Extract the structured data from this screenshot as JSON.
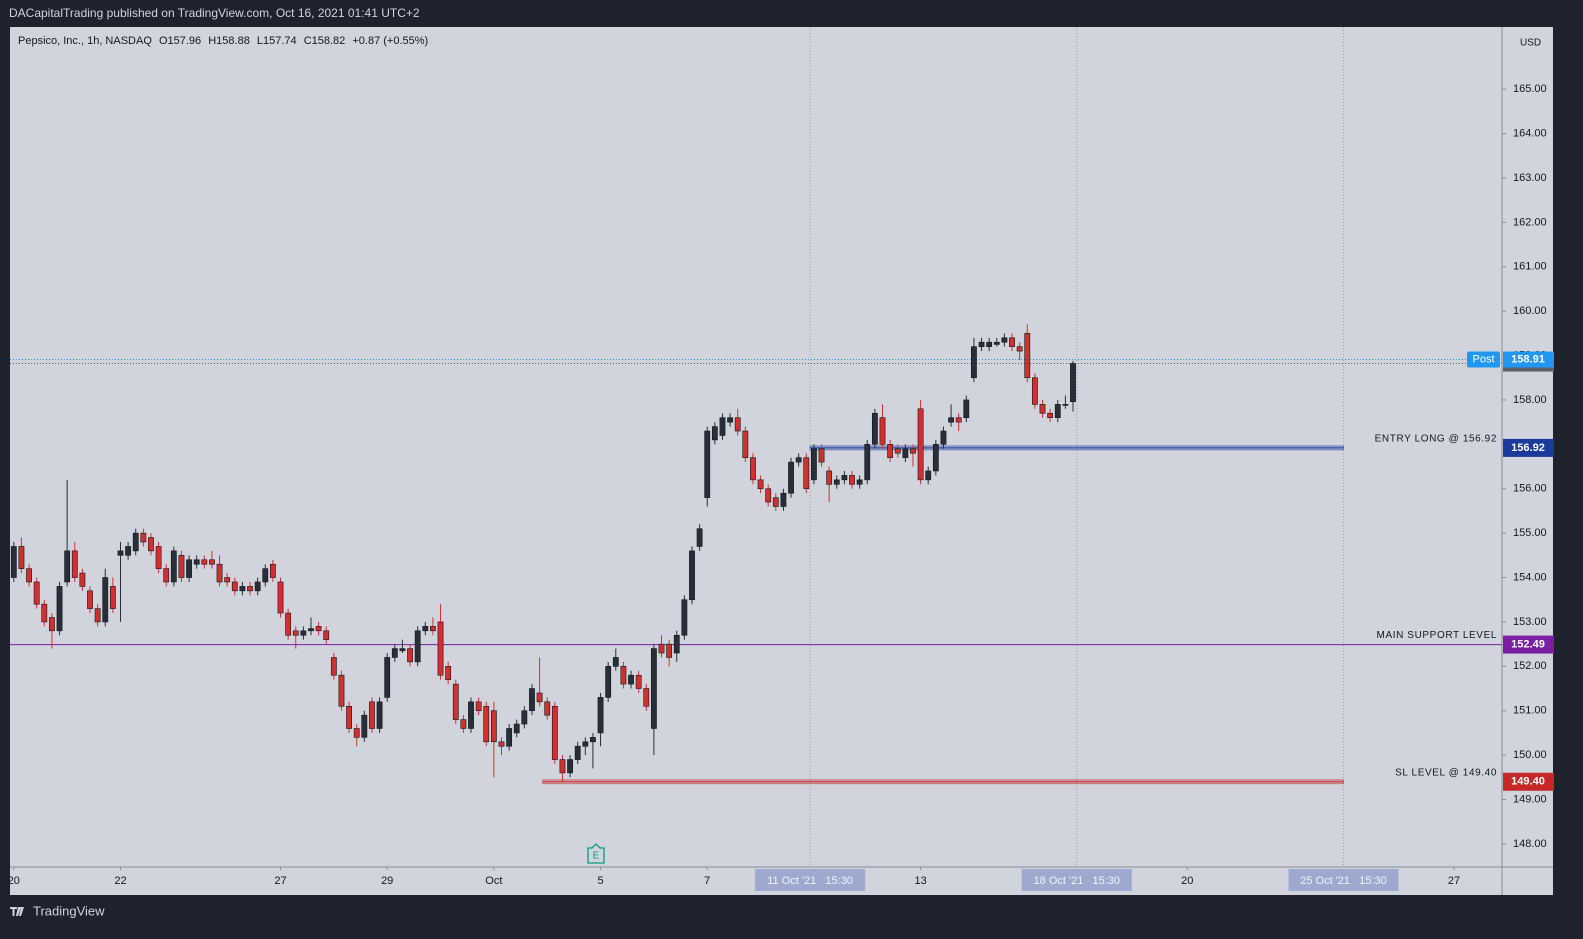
{
  "header": {
    "publisher": "DACapitalTrading published on TradingView.com, Oct 16, 2021 01:41 UTC+2"
  },
  "footer": {
    "brand": "TradingView"
  },
  "chart_data": {
    "type": "candlestick",
    "symbol": "Pepsico, Inc., 1h, NASDAQ",
    "ohlc_legend": [
      "O157.96",
      "H158.88",
      "L157.74",
      "C158.82",
      "+0.87 (+0.55%)"
    ],
    "currency": "USD",
    "earnings_marker": "E",
    "open": [
      154.0,
      154.7,
      154.2,
      153.9,
      153.4,
      153.1,
      152.8,
      153.9,
      154.6,
      154.1,
      153.7,
      153.3,
      153.0,
      153.8,
      154.5,
      154.5,
      154.6,
      155.0,
      154.9,
      154.7,
      154.2,
      153.9,
      154.5,
      154.0,
      154.3,
      154.4,
      154.4,
      154.3,
      154.0,
      153.9,
      153.7,
      153.8,
      153.7,
      153.9,
      154.3,
      153.9,
      153.2,
      152.8,
      152.7,
      152.8,
      152.9,
      152.8,
      152.2,
      151.8,
      151.1,
      150.6,
      150.4,
      151.2,
      150.6,
      151.3,
      152.2,
      152.35,
      152.4,
      152.1,
      152.8,
      152.9,
      153.0,
      152.0,
      151.6,
      150.8,
      150.6,
      151.2,
      151.1,
      151.0,
      150.3,
      150.2,
      150.5,
      150.7,
      151.0,
      151.4,
      151.2,
      151.1,
      149.9,
      149.6,
      149.9,
      150.2,
      150.3,
      150.5,
      151.3,
      152.0,
      152.0,
      151.6,
      151.8,
      151.5,
      150.6,
      152.5,
      152.5,
      152.3,
      152.7,
      153.5,
      154.7,
      155.8,
      157.1,
      157.2,
      157.5,
      157.6,
      157.3,
      156.7,
      156.2,
      156.0,
      155.8,
      155.6,
      155.9,
      156.6,
      156.7,
      156.2,
      156.9,
      156.4,
      156.1,
      156.2,
      156.3,
      156.1,
      156.2,
      157.0,
      157.6,
      157.0,
      156.9,
      156.7,
      156.9,
      157.8,
      156.2,
      156.4,
      157.0,
      157.5,
      157.6,
      157.6,
      158.5,
      159.2,
      159.2,
      159.25,
      159.3,
      159.4,
      159.2,
      159.5,
      158.5,
      157.9,
      157.7,
      157.6,
      157.9,
      157.96
    ],
    "high": [
      154.8,
      154.9,
      154.3,
      154.0,
      153.5,
      153.2,
      153.9,
      156.2,
      154.8,
      154.2,
      153.8,
      153.4,
      154.2,
      154.0,
      154.8,
      154.8,
      155.1,
      155.1,
      155.0,
      154.8,
      154.3,
      154.7,
      154.6,
      154.5,
      154.5,
      154.5,
      154.6,
      154.5,
      154.1,
      154.0,
      153.9,
      153.9,
      154.0,
      154.3,
      154.4,
      154.0,
      153.3,
      152.9,
      152.9,
      153.1,
      153.0,
      152.9,
      152.3,
      151.9,
      151.2,
      150.7,
      151.0,
      151.3,
      151.3,
      152.3,
      152.5,
      152.6,
      152.5,
      152.9,
      153.0,
      153.1,
      153.4,
      152.1,
      151.7,
      150.9,
      151.3,
      151.3,
      151.2,
      151.2,
      150.4,
      150.7,
      150.8,
      151.1,
      151.6,
      152.2,
      151.3,
      151.2,
      150.0,
      150.0,
      150.3,
      150.4,
      150.5,
      151.4,
      152.1,
      152.4,
      152.1,
      151.9,
      151.9,
      151.6,
      152.5,
      152.7,
      152.6,
      152.8,
      153.6,
      154.7,
      155.2,
      157.4,
      157.5,
      157.7,
      157.7,
      157.8,
      157.4,
      156.8,
      156.3,
      156.1,
      155.9,
      156.0,
      156.7,
      156.8,
      156.8,
      157.0,
      157.0,
      156.5,
      156.3,
      156.4,
      156.4,
      156.3,
      157.1,
      157.8,
      157.9,
      157.1,
      157.0,
      157.0,
      157.0,
      158.0,
      156.5,
      157.1,
      157.4,
      157.9,
      157.7,
      158.1,
      159.4,
      159.4,
      159.4,
      159.4,
      159.5,
      159.5,
      159.3,
      159.7,
      158.6,
      158.0,
      157.8,
      158.0,
      158.1,
      158.88
    ],
    "low": [
      153.9,
      154.1,
      153.8,
      153.3,
      152.9,
      152.4,
      152.7,
      153.8,
      153.9,
      153.7,
      153.2,
      152.9,
      152.9,
      153.2,
      153.0,
      154.4,
      154.5,
      154.7,
      154.5,
      154.1,
      153.8,
      153.8,
      153.9,
      153.9,
      154.2,
      154.2,
      154.2,
      153.8,
      153.8,
      153.6,
      153.6,
      153.6,
      153.6,
      153.8,
      153.9,
      153.1,
      152.6,
      152.4,
      152.6,
      152.7,
      152.7,
      152.5,
      151.7,
      151.0,
      150.5,
      150.2,
      150.3,
      150.5,
      150.5,
      151.2,
      152.1,
      152.3,
      152.0,
      152.0,
      152.7,
      152.7,
      151.7,
      151.6,
      150.7,
      150.5,
      150.5,
      150.9,
      150.2,
      149.5,
      150.0,
      150.1,
      150.4,
      150.6,
      150.9,
      151.1,
      150.8,
      149.8,
      149.4,
      149.5,
      149.8,
      150.0,
      149.7,
      150.2,
      151.2,
      151.9,
      151.5,
      151.5,
      151.4,
      151.0,
      150.0,
      152.2,
      152.0,
      152.1,
      152.6,
      153.4,
      154.6,
      155.6,
      157.0,
      157.1,
      157.4,
      157.2,
      156.6,
      156.1,
      155.9,
      155.6,
      155.5,
      155.5,
      155.8,
      156.5,
      155.9,
      156.1,
      156.5,
      155.7,
      156.0,
      156.1,
      156.0,
      156.0,
      156.1,
      156.9,
      156.9,
      156.6,
      156.7,
      156.6,
      156.5,
      156.1,
      156.1,
      156.3,
      156.9,
      157.4,
      157.3,
      157.5,
      158.4,
      159.1,
      159.1,
      159.2,
      159.2,
      159.1,
      158.9,
      158.4,
      157.8,
      157.6,
      157.5,
      157.5,
      157.8,
      157.74
    ],
    "close": [
      154.7,
      154.2,
      153.9,
      153.4,
      153.0,
      152.8,
      153.8,
      154.6,
      154.0,
      153.8,
      153.3,
      153.0,
      154.0,
      153.3,
      154.6,
      154.7,
      155.0,
      154.8,
      154.6,
      154.2,
      153.9,
      154.6,
      154.0,
      154.4,
      154.4,
      154.3,
      154.3,
      153.9,
      153.9,
      153.7,
      153.8,
      153.7,
      153.9,
      154.2,
      154.0,
      153.2,
      152.7,
      152.7,
      152.8,
      152.85,
      152.8,
      152.6,
      151.8,
      151.1,
      150.6,
      150.4,
      150.9,
      150.6,
      151.2,
      152.2,
      152.4,
      152.4,
      152.1,
      152.8,
      152.9,
      152.8,
      151.8,
      151.7,
      150.8,
      150.6,
      151.2,
      151.0,
      150.3,
      150.3,
      150.2,
      150.6,
      150.7,
      151.0,
      151.5,
      151.2,
      150.9,
      149.9,
      149.6,
      149.9,
      150.2,
      150.3,
      150.4,
      151.3,
      152.0,
      152.2,
      151.6,
      151.8,
      151.5,
      151.1,
      152.4,
      152.3,
      152.2,
      152.7,
      153.5,
      154.6,
      155.1,
      157.3,
      157.4,
      157.6,
      157.6,
      157.3,
      156.7,
      156.2,
      156.0,
      155.7,
      155.6,
      155.9,
      156.6,
      156.7,
      156.0,
      156.9,
      156.6,
      156.1,
      156.2,
      156.3,
      156.1,
      156.2,
      157.0,
      157.7,
      157.0,
      156.7,
      156.8,
      156.9,
      156.8,
      156.2,
      156.4,
      157.0,
      157.3,
      157.6,
      157.5,
      158.0,
      159.2,
      159.3,
      159.3,
      159.3,
      159.4,
      159.2,
      159.1,
      158.5,
      157.9,
      157.7,
      157.6,
      157.9,
      157.9,
      158.82
    ],
    "up_color": "#2a2e39",
    "down_color": "#d0312d",
    "xlim": [
      -0.5,
      195.3
    ],
    "xticks": [
      {
        "value": 0,
        "label": "20"
      },
      {
        "value": 14,
        "label": "22"
      },
      {
        "value": 35,
        "label": "27"
      },
      {
        "value": 49,
        "label": "29"
      },
      {
        "value": 63,
        "label": "Oct"
      },
      {
        "value": 77,
        "label": "5"
      },
      {
        "value": 91,
        "label": "7"
      },
      {
        "value": 119,
        "label": "13"
      },
      {
        "value": 154,
        "label": "20"
      },
      {
        "value": 189,
        "label": "27"
      }
    ],
    "ylim": [
      147.48,
      166.4
    ],
    "yticks": [
      {
        "value": 148,
        "label": "148.00"
      },
      {
        "value": 149,
        "label": "149.00"
      },
      {
        "value": 150,
        "label": "150.00"
      },
      {
        "value": 151,
        "label": "151.00"
      },
      {
        "value": 152,
        "label": "152.00"
      },
      {
        "value": 153,
        "label": "153.00"
      },
      {
        "value": 154,
        "label": "154.00"
      },
      {
        "value": 155,
        "label": "155.00"
      },
      {
        "value": 156,
        "label": "156.00"
      },
      {
        "value": 157,
        "label": "157.00"
      },
      {
        "value": 158,
        "label": "158.00"
      },
      {
        "value": 159,
        "label": "159.00"
      },
      {
        "value": 160,
        "label": "160.00"
      },
      {
        "value": 161,
        "label": "161.00"
      },
      {
        "value": 162,
        "label": "162.00"
      },
      {
        "value": 163,
        "label": "163.00"
      },
      {
        "value": 164,
        "label": "164.00"
      },
      {
        "value": 165,
        "label": "165.00"
      }
    ],
    "grid": false,
    "time_markers": [
      {
        "value": 104.5,
        "label": "11 Oct '21   15:30"
      },
      {
        "value": 139.5,
        "label": "18 Oct '21   15:30"
      },
      {
        "value": 174.5,
        "label": "25 Oct '21   15:30"
      }
    ],
    "levels": [
      {
        "label": "ENTRY LONG @ 156.92",
        "value": 156.92,
        "color": "#1a3a9c",
        "from": 104.5,
        "to": 174.5
      },
      {
        "label": "MAIN SUPPORT LEVEL",
        "value": 152.49,
        "color": "#7b1fa2"
      },
      {
        "label": "SL LEVEL @ 149.40",
        "value": 149.4,
        "value_label": "149.40",
        "color": "#c62828",
        "from": 69.4,
        "to": 174.5
      }
    ],
    "last_price": {
      "value": 158.82,
      "color": "#5d606b"
    },
    "post_price": {
      "label": "Post",
      "value": 158.91,
      "color": "#2196f3"
    }
  }
}
